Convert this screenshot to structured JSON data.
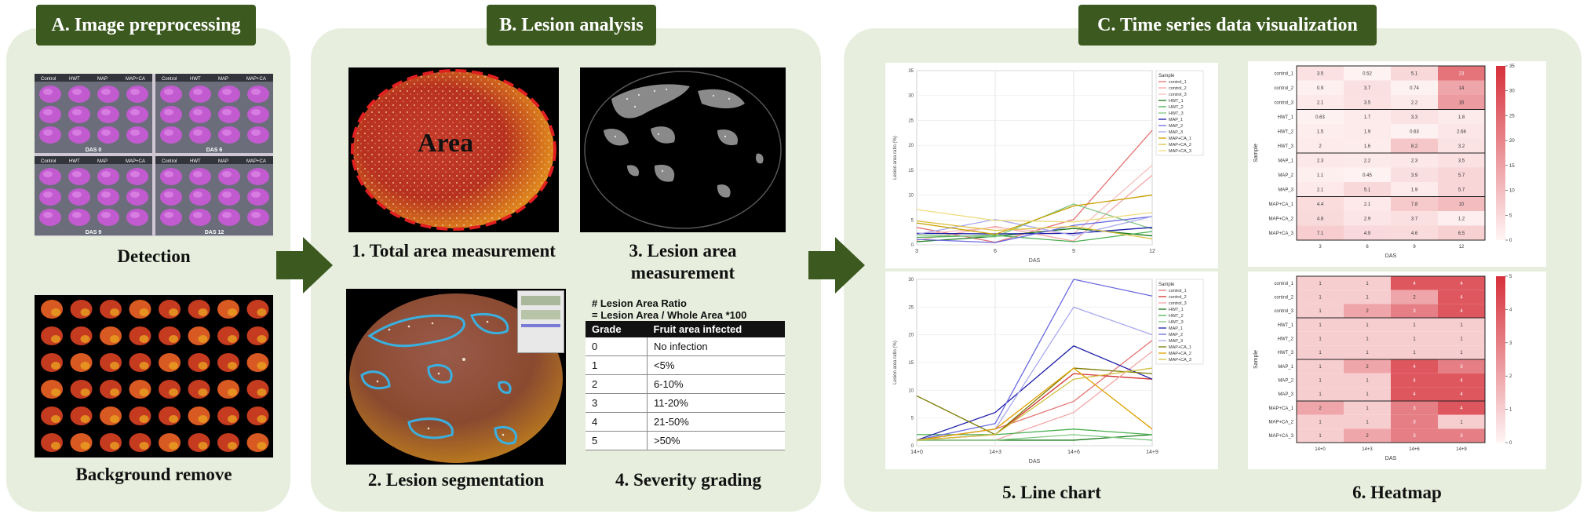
{
  "panels": {
    "a": {
      "title": "A. Image preprocessing",
      "detection_caption": "Detection",
      "background_caption": "Background remove",
      "tray_labels": [
        "DAS 0",
        "DAS 6",
        "DAS 9",
        "DAS 12"
      ],
      "tray_headers": [
        "Control",
        "HWT",
        "MAP",
        "MAP+CA"
      ]
    },
    "b": {
      "title": "B. Lesion analysis",
      "area_label": "Area",
      "step1": "1. Total area measurement",
      "step2": "2. Lesion segmentation",
      "step3": "3. Lesion area measurement",
      "step4": "4. Severity grading",
      "ratio_line1": "# Lesion Area Ratio",
      "ratio_line2": "= Lesion Area / Whole Area *100",
      "grade_header": [
        "Grade",
        "Fruit area infected"
      ],
      "grades": [
        [
          "0",
          "No infection"
        ],
        [
          "1",
          "<5%"
        ],
        [
          "2",
          "6-10%"
        ],
        [
          "3",
          "11-20%"
        ],
        [
          "4",
          "21-50%"
        ],
        [
          ">50%",
          ""
        ]
      ],
      "grade_last": [
        "5",
        ">50%"
      ]
    },
    "c": {
      "title": "C. Time series data visualization",
      "step5": "5. Line chart",
      "step6": "6. Heatmap"
    }
  },
  "chart_data": [
    {
      "type": "line",
      "title": "",
      "xlabel": "DAS",
      "ylabel": "Lesion area ratio (%)",
      "x": [
        "3",
        "6",
        "9",
        "12"
      ],
      "ylim": [
        0,
        35
      ],
      "legend_title": "Sample",
      "legend_position": "top-right",
      "series": [
        {
          "name": "control_1",
          "color": "#e57373",
          "values": [
            3.5,
            0.52,
            5.1,
            23
          ]
        },
        {
          "name": "control_2",
          "color": "#f4a6a6",
          "values": [
            0.9,
            3.7,
            0.74,
            14
          ]
        },
        {
          "name": "control_3",
          "color": "#f8c0c0",
          "values": [
            2.1,
            3.5,
            2.2,
            16
          ]
        },
        {
          "name": "HWT_1",
          "color": "#1b7a1b",
          "values": [
            0.63,
            1.7,
            3.3,
            1.8
          ]
        },
        {
          "name": "HWT_2",
          "color": "#4caf50",
          "values": [
            1.5,
            1.9,
            0.63,
            2.68
          ]
        },
        {
          "name": "HWT_3",
          "color": "#81c784",
          "values": [
            2,
            1.6,
            8.2,
            3.2
          ]
        },
        {
          "name": "MAP_1",
          "color": "#1a1aa8",
          "values": [
            2.3,
            2.2,
            2.3,
            3.5
          ]
        },
        {
          "name": "MAP_2",
          "color": "#6a6ae0",
          "values": [
            1.1,
            0.45,
            3.9,
            5.7
          ]
        },
        {
          "name": "MAP_3",
          "color": "#a9a9f0",
          "values": [
            2.1,
            5.1,
            1.9,
            5.7
          ]
        },
        {
          "name": "MAP+CA_1",
          "color": "#c9a000",
          "values": [
            4.4,
            2.1,
            7.8,
            10
          ]
        },
        {
          "name": "MAP+CA_2",
          "color": "#e0c040",
          "values": [
            4.8,
            2.9,
            3.7,
            1.2
          ]
        },
        {
          "name": "MAP+CA_3",
          "color": "#f0dc80",
          "values": [
            7.1,
            4.9,
            4.6,
            6.5
          ]
        }
      ]
    },
    {
      "type": "line",
      "title": "",
      "xlabel": "DAS",
      "ylabel": "Lesion area ratio (%)",
      "x": [
        "14+0",
        "14+3",
        "14+6",
        "14+9"
      ],
      "ylim": [
        0,
        30
      ],
      "legend_title": "Sample",
      "legend_position": "top-right",
      "series": [
        {
          "name": "control_1",
          "color": "#e57373",
          "values": [
            1,
            3,
            8,
            19
          ]
        },
        {
          "name": "control_2",
          "color": "#d32f2f",
          "values": [
            1,
            2,
            13,
            12
          ]
        },
        {
          "name": "control_3",
          "color": "#f4a6a6",
          "values": [
            1,
            1,
            6,
            17
          ]
        },
        {
          "name": "HWT_1",
          "color": "#1b7a1b",
          "values": [
            1,
            1,
            1,
            2
          ]
        },
        {
          "name": "HWT_2",
          "color": "#4caf50",
          "values": [
            2,
            2,
            3,
            2
          ]
        },
        {
          "name": "HWT_3",
          "color": "#81c784",
          "values": [
            1,
            1,
            2,
            1
          ]
        },
        {
          "name": "MAP_1",
          "color": "#1a1aa8",
          "values": [
            1,
            6,
            18,
            12
          ]
        },
        {
          "name": "MAP_2",
          "color": "#6a6ae0",
          "values": [
            1,
            4,
            30,
            27
          ]
        },
        {
          "name": "MAP_3",
          "color": "#a9a9f0",
          "values": [
            1,
            3,
            25,
            20
          ]
        },
        {
          "name": "MAP+CA_1",
          "color": "#7a7a00",
          "values": [
            9,
            2,
            14,
            13
          ]
        },
        {
          "name": "MAP+CA_2",
          "color": "#e0a000",
          "values": [
            1,
            3,
            14,
            3
          ]
        },
        {
          "name": "MAP+CA_3",
          "color": "#d0c040",
          "values": [
            1,
            2,
            12,
            14
          ]
        }
      ]
    },
    {
      "type": "heatmap",
      "xlabel": "DAS",
      "ylabel": "Sample",
      "x": [
        "3",
        "6",
        "9",
        "12"
      ],
      "rows": [
        "control_1",
        "control_2",
        "control_3",
        "HWT_1",
        "HWT_2",
        "HWT_3",
        "MAP_1",
        "MAP_2",
        "MAP_3",
        "MAP+CA_1",
        "MAP+CA_2",
        "MAP+CA_3"
      ],
      "values": [
        [
          "3.5",
          "0.52",
          "5.1",
          "23"
        ],
        [
          "0.9",
          "3.7",
          "0.74",
          "14"
        ],
        [
          "2.1",
          "3.5",
          "2.2",
          "16"
        ],
        [
          "0.63",
          "1.7",
          "3.3",
          "1.8"
        ],
        [
          "1.5",
          "1.9",
          "0.63",
          "2.68"
        ],
        [
          "2",
          "1.6",
          "8.2",
          "3.2"
        ],
        [
          "2.3",
          "2.2",
          "2.3",
          "3.5"
        ],
        [
          "1.1",
          "0.45",
          "3.9",
          "5.7"
        ],
        [
          "2.1",
          "5.1",
          "1.9",
          "5.7"
        ],
        [
          "4.4",
          "2.1",
          "7.8",
          "10"
        ],
        [
          "4.8",
          "2.9",
          "3.7",
          "1.2"
        ],
        [
          "7.1",
          "4.9",
          "4.6",
          "6.5"
        ]
      ],
      "colorbar_ticks": [
        "0",
        "5",
        "10",
        "15",
        "20",
        "25",
        "30",
        "35"
      ],
      "vmax": 35
    },
    {
      "type": "heatmap",
      "xlabel": "DAS",
      "ylabel": "Sample",
      "x": [
        "14+0",
        "14+3",
        "14+6",
        "14+9"
      ],
      "rows": [
        "control_1",
        "control_2",
        "control_3",
        "HWT_1",
        "HWT_2",
        "HWT_3",
        "MAP_1",
        "MAP_2",
        "MAP_3",
        "MAP+CA_1",
        "MAP+CA_2",
        "MAP+CA_3"
      ],
      "values": [
        [
          "1",
          "1",
          "4",
          "4"
        ],
        [
          "1",
          "1",
          "2",
          "4"
        ],
        [
          "1",
          "2",
          "3",
          "4"
        ],
        [
          "1",
          "1",
          "1",
          "1"
        ],
        [
          "1",
          "1",
          "1",
          "1"
        ],
        [
          "1",
          "1",
          "1",
          "1"
        ],
        [
          "1",
          "2",
          "4",
          "3"
        ],
        [
          "1",
          "1",
          "4",
          "4"
        ],
        [
          "1",
          "1",
          "4",
          "4"
        ],
        [
          "2",
          "1",
          "3",
          "4"
        ],
        [
          "1",
          "1",
          "3",
          "1"
        ],
        [
          "1",
          "2",
          "3",
          "3"
        ]
      ],
      "colorbar_ticks": [
        "0",
        "1",
        "2",
        "3",
        "4",
        "5"
      ],
      "vmax": 5
    }
  ]
}
